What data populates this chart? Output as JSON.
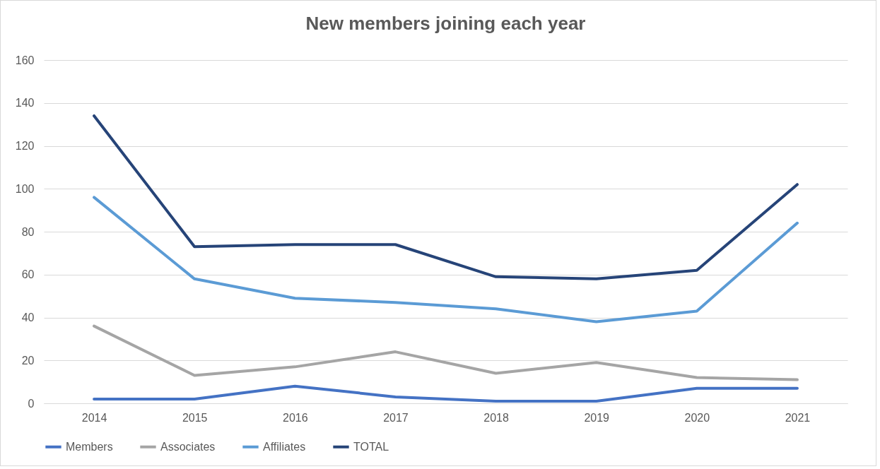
{
  "chart_data": {
    "type": "line",
    "title": "New members joining each year",
    "categories": [
      "2014",
      "2015",
      "2016",
      "2017",
      "2018",
      "2019",
      "2020",
      "2021"
    ],
    "series": [
      {
        "name": "Members",
        "color": "#4472c4",
        "values": [
          2,
          2,
          8,
          3,
          1,
          1,
          7,
          7
        ]
      },
      {
        "name": "Associates",
        "color": "#a5a5a5",
        "values": [
          36,
          13,
          17,
          24,
          14,
          19,
          12,
          11
        ]
      },
      {
        "name": "Affiliates",
        "color": "#5b9bd5",
        "values": [
          96,
          58,
          49,
          47,
          44,
          38,
          43,
          84
        ]
      },
      {
        "name": "TOTAL",
        "color": "#264478",
        "values": [
          134,
          73,
          74,
          74,
          59,
          58,
          62,
          102
        ]
      }
    ],
    "ylim": [
      0,
      160
    ],
    "yticks": [
      0,
      20,
      40,
      60,
      80,
      100,
      120,
      140,
      160
    ],
    "grid": "y",
    "legend": "bottom",
    "line_style": "solid"
  }
}
